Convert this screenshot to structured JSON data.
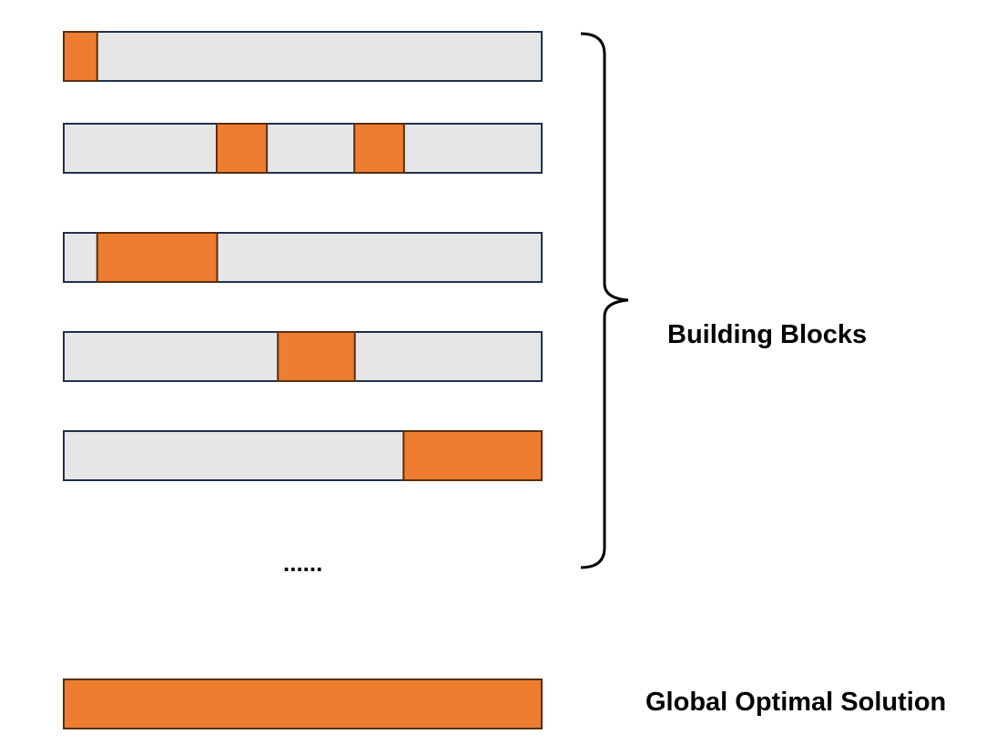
{
  "labels": {
    "building_blocks": "Building Blocks",
    "global_solution": "Global Optimal Solution",
    "ellipsis": "......"
  },
  "colors": {
    "bar_fill": "#e6e6e6",
    "bar_border": "#1f3050",
    "block_fill": "#ed7d31",
    "block_border": "#5a2e0f",
    "brace": "#000000"
  },
  "strings": [
    {
      "name": "string-1",
      "blocks": [
        [
          0.0,
          0.07
        ]
      ]
    },
    {
      "name": "string-2",
      "blocks": [
        [
          0.32,
          0.425
        ],
        [
          0.608,
          0.712
        ]
      ]
    },
    {
      "name": "string-3",
      "blocks": [
        [
          0.07,
          0.321
        ]
      ]
    },
    {
      "name": "string-4",
      "blocks": [
        [
          0.448,
          0.609
        ]
      ]
    },
    {
      "name": "string-5",
      "blocks": [
        [
          0.711,
          1.0
        ]
      ]
    }
  ],
  "global_string": {
    "blocks": [
      [
        0.0,
        1.0
      ]
    ]
  }
}
